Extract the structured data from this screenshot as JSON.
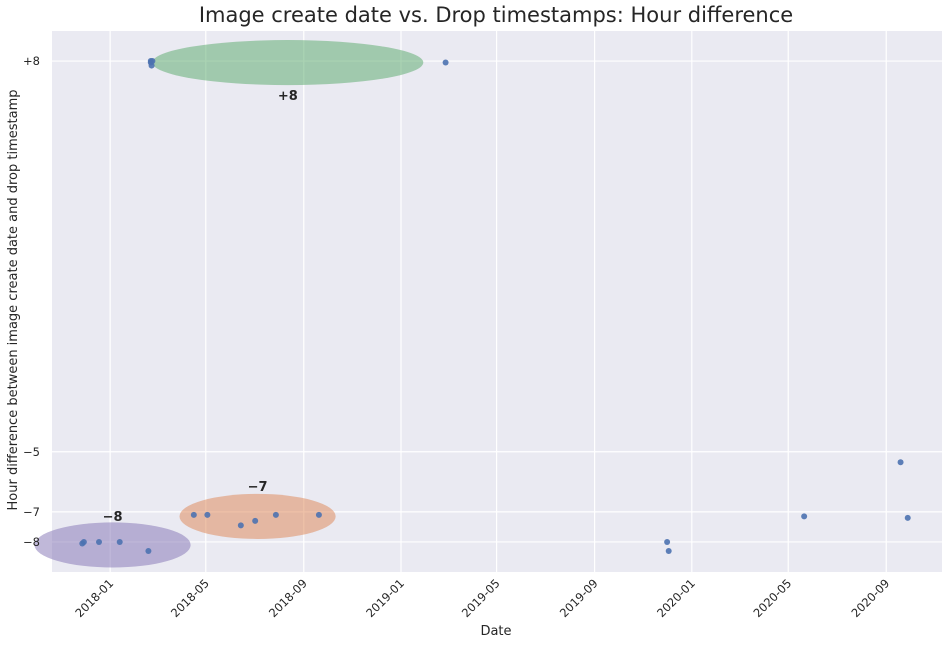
{
  "chart_data": {
    "type": "scatter",
    "title": "Image create date vs. Drop timestamps: Hour difference",
    "xlabel": "Date",
    "ylabel": "Hour difference between image create date and drop timestamp",
    "xlim": [
      "2017-10-20",
      "2020-11-10"
    ],
    "ylim": [
      -9.0,
      9.0
    ],
    "grid": true,
    "background_color": "#eaeaf2",
    "point_color": "#4c72b0",
    "x_ticks": [
      {
        "label": "2018-01",
        "value": "2018-01-01"
      },
      {
        "label": "2018-05",
        "value": "2018-05-01"
      },
      {
        "label": "2018-09",
        "value": "2018-09-01"
      },
      {
        "label": "2019-01",
        "value": "2019-01-01"
      },
      {
        "label": "2019-05",
        "value": "2019-05-01"
      },
      {
        "label": "2019-09",
        "value": "2019-09-01"
      },
      {
        "label": "2020-01",
        "value": "2020-01-01"
      },
      {
        "label": "2020-05",
        "value": "2020-05-01"
      },
      {
        "label": "2020-09",
        "value": "2020-09-01"
      }
    ],
    "y_ticks": [
      {
        "label": "+8",
        "value": 8
      },
      {
        "label": "−5",
        "value": -5
      },
      {
        "label": "−7",
        "value": -7
      },
      {
        "label": "−8",
        "value": -8
      }
    ],
    "points": [
      {
        "x": "2017-11-27",
        "y": -8.05
      },
      {
        "x": "2017-11-29",
        "y": -8.0
      },
      {
        "x": "2017-12-18",
        "y": -8.0
      },
      {
        "x": "2018-01-13",
        "y": -8.0
      },
      {
        "x": "2018-02-18",
        "y": -8.3
      },
      {
        "x": "2018-02-21",
        "y": 8.0
      },
      {
        "x": "2018-02-21",
        "y": 7.95
      },
      {
        "x": "2018-02-22",
        "y": 7.85
      },
      {
        "x": "2018-02-23",
        "y": 8.0
      },
      {
        "x": "2018-04-16",
        "y": -7.1
      },
      {
        "x": "2018-05-03",
        "y": -7.1
      },
      {
        "x": "2018-06-14",
        "y": -7.45
      },
      {
        "x": "2018-07-02",
        "y": -7.3
      },
      {
        "x": "2018-07-28",
        "y": -7.1
      },
      {
        "x": "2018-09-20",
        "y": -7.1
      },
      {
        "x": "2019-02-26",
        "y": 7.95
      },
      {
        "x": "2019-12-01",
        "y": -8.0
      },
      {
        "x": "2019-12-03",
        "y": -8.3
      },
      {
        "x": "2020-05-21",
        "y": -7.15
      },
      {
        "x": "2020-09-19",
        "y": -5.35
      },
      {
        "x": "2020-09-28",
        "y": -7.2
      }
    ],
    "clusters": [
      {
        "label": "+8",
        "color": "#55a868",
        "center": {
          "x": "2018-08-12",
          "y": 7.95
        },
        "radius_days": 170,
        "radius_y": 0.75,
        "label_pos": {
          "x": "2018-08-12",
          "y": 6.7
        }
      },
      {
        "label": "−7",
        "color": "#dd8452",
        "center": {
          "x": "2018-07-05",
          "y": -7.15
        },
        "radius_days": 98,
        "radius_y": 0.75,
        "label_pos": {
          "x": "2018-07-05",
          "y": -6.3
        }
      },
      {
        "label": "−8",
        "color": "#8172b3",
        "center": {
          "x": "2018-01-04",
          "y": -8.1
        },
        "radius_days": 98,
        "radius_y": 0.75,
        "label_pos": {
          "x": "2018-01-04",
          "y": -7.3
        }
      }
    ]
  }
}
